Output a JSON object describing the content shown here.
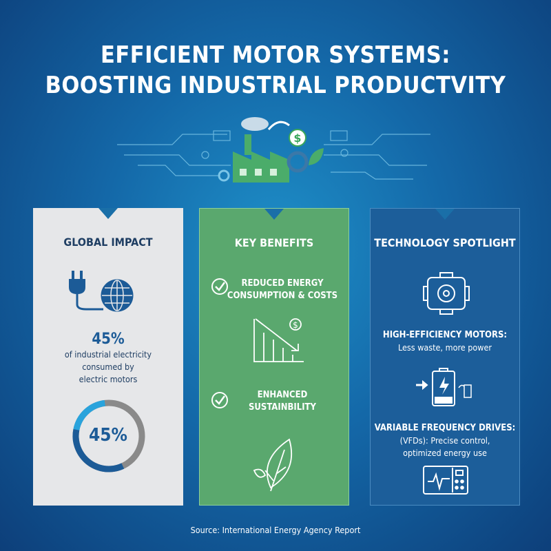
{
  "title": {
    "line1": "EFFICIENT MOTOR SYSTEMS:",
    "line2": "BOOSTING INDUSTRIAL PRODUCTVITY"
  },
  "colors": {
    "accent_blue": "#1c5b97",
    "green": "#5aa86e",
    "light_blue": "#29a3dc",
    "gray": "#8a8a8a"
  },
  "global_impact": {
    "heading": "GLOBAL IMPACT",
    "icons": [
      "plug-icon",
      "globe-icon"
    ],
    "stat": "45%",
    "desc1": "of industrial electricity",
    "desc2": "consumed by",
    "desc3": "electric motors",
    "donut_label": "45%",
    "donut_percent": 45
  },
  "key_benefits": {
    "heading": "KEY BENEFITS",
    "items": [
      {
        "line1": "REDUCED ENERGY",
        "line2": "CONSUMPTION & COSTS",
        "icon": "declining-cost-chart-icon"
      },
      {
        "line1": "ENHANCED",
        "line2": "SUSTAINBILITY",
        "icon": "leaf-icon"
      }
    ]
  },
  "technology": {
    "heading": "TECHNOLOGY SPOTLIGHT",
    "motors_title": "HIGH-EFFICIENCY MOTORS:",
    "motors_desc": "Less waste, more power",
    "vfd_title": "VARIABLE FREQUENCY DRIVES:",
    "vfd_desc1": "(VFDs): Precise control,",
    "vfd_desc2": "optimized energy use"
  },
  "source": "Source: International Energy Agency Report"
}
